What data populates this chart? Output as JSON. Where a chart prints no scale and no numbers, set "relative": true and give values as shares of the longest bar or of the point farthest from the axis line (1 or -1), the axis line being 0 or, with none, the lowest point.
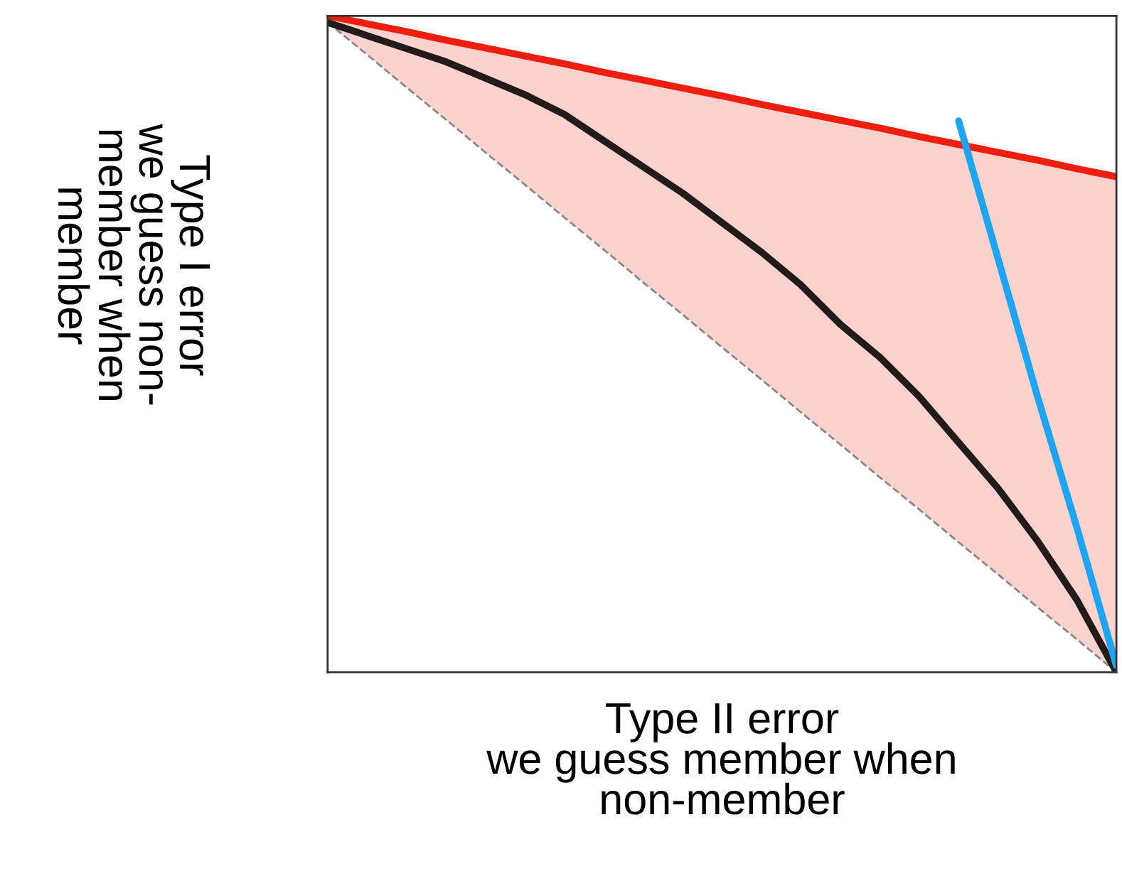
{
  "chart_data": {
    "type": "line",
    "relative": true,
    "xlabel": "Type II error\nwe guess member when\nnon-member",
    "ylabel": "Type I error\nwe guess non-\nmember when\nmember",
    "categories": [
      null,
      null,
      null,
      null,
      null,
      null,
      null,
      null,
      null,
      null,
      null,
      null,
      null,
      null,
      null,
      null,
      null,
      null,
      null,
      null,
      null
    ],
    "tick_labels": false,
    "legend": false,
    "series": [
      {
        "color": "#888888",
        "line_style": "dashed",
        "values": [
          0.99,
          0.941,
          0.891,
          0.842,
          0.792,
          0.743,
          0.693,
          0.644,
          0.594,
          0.545,
          0.495,
          0.446,
          0.396,
          0.347,
          0.297,
          0.248,
          0.198,
          0.149,
          0.099,
          0.05,
          0.0
        ]
      },
      {
        "color": "#f01e0f",
        "values": [
          1,
          0.988,
          0.976,
          0.963,
          0.951,
          0.939,
          0.927,
          0.914,
          0.902,
          0.89,
          0.878,
          0.865,
          0.853,
          0.841,
          0.829,
          0.816,
          0.804,
          0.792,
          0.78,
          0.767,
          0.755
        ],
        "lower": [
          0.99,
          0.941,
          0.891,
          0.842,
          0.792,
          0.743,
          0.693,
          0.644,
          0.594,
          0.545,
          0.495,
          0.446,
          0.396,
          0.347,
          0.297,
          0.248,
          0.198,
          0.149,
          0.099,
          0.05,
          0.0
        ],
        "upper": [
          1,
          0.988,
          0.976,
          0.963,
          0.951,
          0.939,
          0.927,
          0.914,
          0.902,
          0.89,
          0.878,
          0.865,
          0.853,
          0.841,
          0.829,
          0.816,
          0.804,
          0.792,
          0.78,
          0.767,
          0.755
        ]
      },
      {
        "color": "#231a1a",
        "values": [
          0.99,
          0.97,
          0.95,
          0.93,
          0.905,
          0.88,
          0.85,
          0.81,
          0.77,
          0.73,
          0.685,
          0.64,
          0.59,
          0.53,
          0.48,
          0.42,
          0.35,
          0.28,
          0.2,
          0.11,
          0.0
        ]
      },
      {
        "color": "#1ea5f0",
        "values": [
          null,
          null,
          null,
          null,
          null,
          null,
          null,
          null,
          null,
          null,
          null,
          null,
          null,
          null,
          null,
          null,
          0.84,
          0.63,
          0.42,
          0.22,
          0.01
        ]
      }
    ]
  }
}
